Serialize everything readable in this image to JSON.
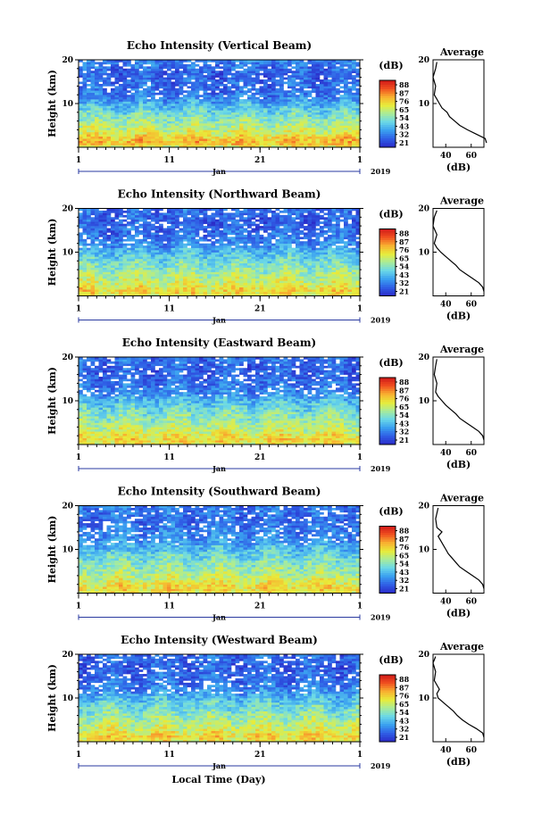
{
  "xaxis": {
    "tick_labels": [
      "1",
      "11",
      "21",
      "1"
    ],
    "tick_days": [
      1,
      11,
      21,
      32
    ],
    "range": [
      1,
      32
    ],
    "month_label": "Jan",
    "year_label": "2019",
    "title": "Local Time (Day)"
  },
  "yaxis": {
    "label": "Height (km)",
    "ticks": [
      "10",
      "20"
    ],
    "range": [
      0,
      20
    ]
  },
  "colorbar": {
    "unit": "(dB)",
    "ticks": [
      "88",
      "87",
      "76",
      "65",
      "54",
      "43",
      "32",
      "21"
    ],
    "range": [
      21,
      88
    ]
  },
  "average_panel": {
    "title": "Average",
    "x_ticks": [
      "40",
      "60"
    ],
    "x_range": [
      30,
      70
    ],
    "unit": "(dB)"
  },
  "colors": {
    "scale": [
      "#2a2ac8",
      "#2f5fe6",
      "#3aa0f0",
      "#6ad8e8",
      "#a8ec9a",
      "#e8ec3a",
      "#f8b030",
      "#f05020",
      "#d01818"
    ]
  },
  "chart_data": [
    {
      "type": "heatmap",
      "title": "Echo Intensity (Vertical Beam)",
      "ylabel": "Height (km)",
      "xlabel": "Local Time (Day)",
      "x_range": [
        1,
        32
      ],
      "y_range": [
        0,
        20
      ],
      "color_range_dB": [
        21,
        88
      ],
      "mean_profile_dB": [
        [
          0,
          60
        ],
        [
          1,
          70
        ],
        [
          2,
          68
        ],
        [
          3,
          62
        ],
        [
          5,
          56
        ],
        [
          7,
          50
        ],
        [
          9,
          44
        ],
        [
          10,
          40
        ],
        [
          11,
          36
        ],
        [
          13,
          32
        ],
        [
          15,
          32
        ],
        [
          17,
          30
        ],
        [
          19,
          34
        ]
      ],
      "average": {
        "x": [
          72,
          71,
          64,
          57,
          51,
          47,
          43,
          41,
          37,
          35,
          33,
          31,
          32,
          30,
          32,
          33
        ],
        "y": [
          1,
          2,
          3,
          4,
          5,
          6,
          7,
          8,
          9,
          10,
          11,
          12,
          14,
          16,
          18,
          19.5
        ]
      }
    },
    {
      "type": "heatmap",
      "title": "Echo Intensity (Northward Beam)",
      "ylabel": "Height (km)",
      "xlabel": "Local Time (Day)",
      "x_range": [
        1,
        32
      ],
      "y_range": [
        0,
        20
      ],
      "color_range_dB": [
        21,
        88
      ],
      "mean_profile_dB": [
        [
          0,
          62
        ],
        [
          1,
          66
        ],
        [
          2,
          64
        ],
        [
          3,
          60
        ],
        [
          5,
          55
        ],
        [
          7,
          50
        ],
        [
          9,
          45
        ],
        [
          10,
          42
        ],
        [
          11,
          38
        ],
        [
          13,
          34
        ],
        [
          15,
          32
        ],
        [
          17,
          30
        ],
        [
          19,
          32
        ]
      ],
      "average": {
        "x": [
          70,
          69,
          66,
          61,
          56,
          51,
          48,
          44,
          40,
          36,
          33,
          31,
          33,
          30,
          31,
          33
        ],
        "y": [
          1,
          2,
          3,
          4,
          5,
          6,
          7,
          8,
          9,
          10,
          11,
          12,
          14,
          16,
          18,
          19.5
        ]
      }
    },
    {
      "type": "heatmap",
      "title": "Echo Intensity (Eastward Beam)",
      "ylabel": "Height (km)",
      "xlabel": "Local Time (Day)",
      "x_range": [
        1,
        32
      ],
      "y_range": [
        0,
        20
      ],
      "color_range_dB": [
        21,
        88
      ],
      "mean_profile_dB": [
        [
          0,
          62
        ],
        [
          1,
          66
        ],
        [
          2,
          64
        ],
        [
          3,
          60
        ],
        [
          5,
          55
        ],
        [
          7,
          50
        ],
        [
          9,
          45
        ],
        [
          10,
          42
        ],
        [
          11,
          38
        ],
        [
          13,
          34
        ],
        [
          15,
          32
        ],
        [
          17,
          30
        ],
        [
          19,
          32
        ]
      ],
      "average": {
        "x": [
          70,
          69,
          66,
          61,
          56,
          51,
          48,
          44,
          40,
          37,
          34,
          32,
          33,
          31,
          32,
          33
        ],
        "y": [
          1,
          2,
          3,
          4,
          5,
          6,
          7,
          8,
          9,
          10,
          11,
          12,
          14,
          16,
          18,
          19.5
        ]
      }
    },
    {
      "type": "heatmap",
      "title": "Echo Intensity (Southward Beam)",
      "ylabel": "Height (km)",
      "xlabel": "Local Time (Day)",
      "x_range": [
        1,
        32
      ],
      "y_range": [
        0,
        20
      ],
      "color_range_dB": [
        21,
        88
      ],
      "mean_profile_dB": [
        [
          0,
          62
        ],
        [
          1,
          66
        ],
        [
          2,
          64
        ],
        [
          3,
          60
        ],
        [
          5,
          55
        ],
        [
          7,
          50
        ],
        [
          9,
          46
        ],
        [
          10,
          42
        ],
        [
          11,
          40
        ],
        [
          13,
          36
        ],
        [
          15,
          34
        ],
        [
          17,
          32
        ],
        [
          19,
          34
        ]
      ],
      "average": {
        "x": [
          70,
          69,
          66,
          61,
          56,
          51,
          48,
          45,
          42,
          40,
          38,
          36,
          34,
          37,
          33,
          32,
          34
        ],
        "y": [
          1,
          2,
          3,
          4,
          5,
          6,
          7,
          8,
          9,
          10,
          11,
          12,
          13,
          14,
          15,
          17,
          19.5
        ]
      }
    },
    {
      "type": "heatmap",
      "title": "Echo Intensity (Westward Beam)",
      "ylabel": "Height (km)",
      "xlabel": "Local Time (Day)",
      "x_range": [
        1,
        32
      ],
      "y_range": [
        0,
        20
      ],
      "color_range_dB": [
        21,
        88
      ],
      "mean_profile_dB": [
        [
          0,
          62
        ],
        [
          1,
          66
        ],
        [
          2,
          64
        ],
        [
          3,
          60
        ],
        [
          5,
          55
        ],
        [
          7,
          50
        ],
        [
          9,
          45
        ],
        [
          10,
          42
        ],
        [
          11,
          38
        ],
        [
          13,
          34
        ],
        [
          15,
          32
        ],
        [
          17,
          30
        ],
        [
          19,
          32
        ]
      ],
      "average": {
        "x": [
          70,
          69,
          64,
          58,
          53,
          49,
          46,
          42,
          38,
          34,
          33,
          35,
          31,
          32,
          30,
          32
        ],
        "y": [
          1,
          2,
          3,
          4,
          5,
          6,
          7,
          8,
          9,
          10,
          11,
          12,
          14,
          16,
          18,
          19.5
        ]
      }
    }
  ]
}
